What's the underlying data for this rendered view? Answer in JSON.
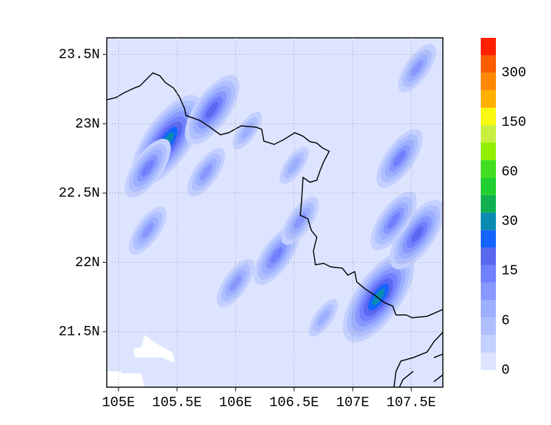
{
  "chart_data": {
    "type": "contour",
    "xlim": [
      104.9,
      107.77
    ],
    "ylim": [
      21.1,
      23.62
    ],
    "xticks": [
      {
        "value": 105,
        "label": "105E"
      },
      {
        "value": 105.5,
        "label": "105.5E"
      },
      {
        "value": 106,
        "label": "106E"
      },
      {
        "value": 106.5,
        "label": "106.5E"
      },
      {
        "value": 107,
        "label": "107E"
      },
      {
        "value": 107.5,
        "label": "107.5E"
      }
    ],
    "yticks": [
      {
        "value": 21.5,
        "label": "21.5N"
      },
      {
        "value": 22,
        "label": "22N"
      },
      {
        "value": 22.5,
        "label": "22.5N"
      },
      {
        "value": 23,
        "label": "23N"
      },
      {
        "value": 23.5,
        "label": "23.5N"
      }
    ],
    "grid": true,
    "colorbar": {
      "levels": [
        0,
        6,
        15,
        30,
        60,
        150,
        300
      ],
      "colors": [
        "#dce4ff",
        "#c4d0ff",
        "#b0c0ff",
        "#9cb0ff",
        "#8898ff",
        "#7080ff",
        "#5a68f0",
        "#1464ff",
        "#0a8cb0",
        "#10b050",
        "#20d030",
        "#40e020",
        "#90f000",
        "#c8f040",
        "#f8f810",
        "#ffb000",
        "#ff8800",
        "#ff5c00",
        "#ff2000"
      ]
    },
    "features": [
      {
        "lon": 105.42,
        "lat": 22.88,
        "value": 30
      },
      {
        "lon": 105.8,
        "lat": 23.1,
        "value": 20
      },
      {
        "lon": 105.25,
        "lat": 22.68,
        "value": 15
      },
      {
        "lon": 105.75,
        "lat": 22.65,
        "value": 12
      },
      {
        "lon": 105.25,
        "lat": 22.23,
        "value": 10
      },
      {
        "lon": 106.35,
        "lat": 22.05,
        "value": 15
      },
      {
        "lon": 106.0,
        "lat": 21.85,
        "value": 12
      },
      {
        "lon": 106.55,
        "lat": 22.3,
        "value": 10
      },
      {
        "lon": 107.22,
        "lat": 21.75,
        "value": 30
      },
      {
        "lon": 107.55,
        "lat": 22.2,
        "value": 20
      },
      {
        "lon": 107.35,
        "lat": 22.3,
        "value": 15
      },
      {
        "lon": 107.4,
        "lat": 22.75,
        "value": 15
      },
      {
        "lon": 107.55,
        "lat": 23.4,
        "value": 10
      },
      {
        "lon": 106.1,
        "lat": 22.95,
        "value": 8
      },
      {
        "lon": 106.5,
        "lat": 22.7,
        "value": 8
      },
      {
        "lon": 106.75,
        "lat": 21.6,
        "value": 8
      }
    ]
  }
}
